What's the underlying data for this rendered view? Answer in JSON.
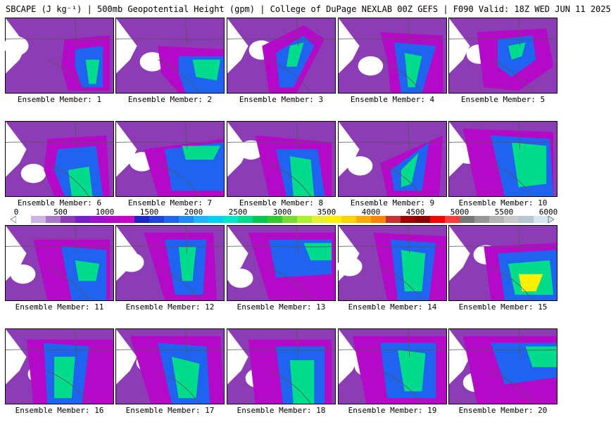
{
  "header": {
    "title": "SBCAPE (J kg⁻¹) | 500mb Geopotential Height (gpm) | College of DuPage NEXLAB 00Z GEFS | F090 Valid: 18Z WED JUN 11 2025"
  },
  "colorbar": {
    "ticks": [
      "0",
      "500",
      "1000",
      "1500",
      "2000",
      "2500",
      "3000",
      "3500",
      "4000",
      "4500",
      "5000",
      "5500",
      "6000"
    ],
    "min": 0,
    "max": 6000,
    "colors": [
      "#ffffff",
      "#c8b4dc",
      "#aa78c8",
      "#8c3cb4",
      "#7a1ec8",
      "#9b12d2",
      "#b40ac8",
      "#c800c8",
      "#1e28c8",
      "#1e46dc",
      "#1e64f0",
      "#1e8cff",
      "#1eb4ff",
      "#00d2f0",
      "#00e6c8",
      "#00dc8c",
      "#00c850",
      "#32c832",
      "#78dc32",
      "#aaf032",
      "#e6f032",
      "#fff000",
      "#ffd200",
      "#ffaa00",
      "#ff8200",
      "#c83232",
      "#a00000",
      "#8c0000",
      "#ff0000",
      "#ff3c3c",
      "#787878",
      "#969696",
      "#b4b4b4",
      "#c8c8c8",
      "#b4c8d2",
      "#d2e6f0"
    ]
  },
  "members": [
    {
      "label": "Ensemble Member: 1"
    },
    {
      "label": "Ensemble Member: 2"
    },
    {
      "label": "Ensemble Member: 3"
    },
    {
      "label": "Ensemble Member: 4"
    },
    {
      "label": "Ensemble Member: 5"
    },
    {
      "label": "Ensemble Member: 6"
    },
    {
      "label": "Ensemble Member: 7"
    },
    {
      "label": "Ensemble Member: 8"
    },
    {
      "label": "Ensemble Member: 9"
    },
    {
      "label": "Ensemble Member: 10"
    },
    {
      "label": "Ensemble Member: 11"
    },
    {
      "label": "Ensemble Member: 12"
    },
    {
      "label": "Ensemble Member: 13"
    },
    {
      "label": "Ensemble Member: 14"
    },
    {
      "label": "Ensemble Member: 15"
    },
    {
      "label": "Ensemble Member: 16"
    },
    {
      "label": "Ensemble Member: 17"
    },
    {
      "label": "Ensemble Member: 18"
    },
    {
      "label": "Ensemble Member: 19"
    },
    {
      "label": "Ensemble Member: 20"
    }
  ]
}
